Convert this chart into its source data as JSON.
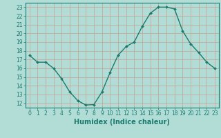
{
  "x": [
    0,
    1,
    2,
    3,
    4,
    5,
    6,
    7,
    8,
    9,
    10,
    11,
    12,
    13,
    14,
    15,
    16,
    17,
    18,
    19,
    20,
    21,
    22,
    23
  ],
  "y": [
    17.5,
    16.7,
    16.7,
    16.0,
    14.8,
    13.3,
    12.3,
    11.8,
    11.85,
    13.3,
    15.5,
    17.5,
    18.5,
    19.0,
    20.8,
    22.3,
    23.0,
    23.0,
    22.8,
    20.3,
    18.8,
    17.8,
    16.7,
    16.0
  ],
  "line_color": "#1a7a6e",
  "marker": "D",
  "marker_size": 2,
  "bg_color": "#b2ddd6",
  "grid_color": "#c8a090",
  "xlabel": "Humidex (Indice chaleur)",
  "xlim": [
    -0.5,
    23.5
  ],
  "ylim": [
    11.5,
    23.5
  ],
  "yticks": [
    12,
    13,
    14,
    15,
    16,
    17,
    18,
    19,
    20,
    21,
    22,
    23
  ],
  "xticks": [
    0,
    1,
    2,
    3,
    4,
    5,
    6,
    7,
    8,
    9,
    10,
    11,
    12,
    13,
    14,
    15,
    16,
    17,
    18,
    19,
    20,
    21,
    22,
    23
  ],
  "tick_fontsize": 5.5,
  "xlabel_fontsize": 7,
  "line_width": 1.0
}
